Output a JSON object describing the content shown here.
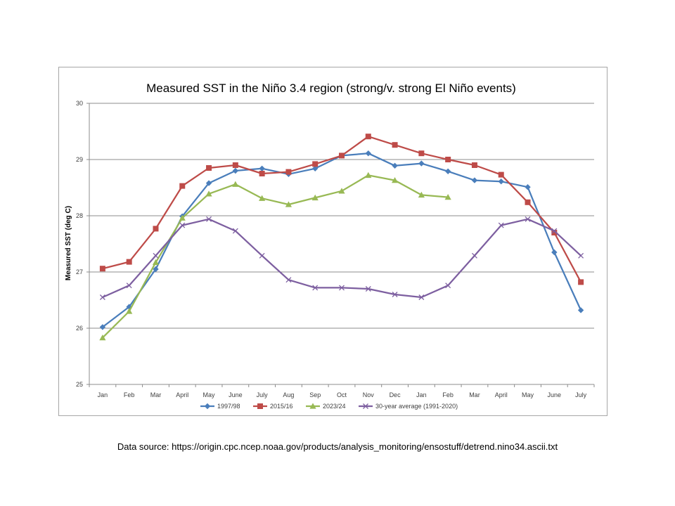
{
  "chart_data": {
    "type": "line",
    "title": "Measured SST in the Niño 3.4 region (strong/v. strong El Niño events)",
    "xlabel": "",
    "ylabel": "Measured SST (deg C)",
    "ylim": [
      25,
      30
    ],
    "yticks": [
      "25",
      "26",
      "27",
      "28",
      "29",
      "30"
    ],
    "grid": "horizontal",
    "legend_position": "bottom",
    "categories": [
      "Jan",
      "Feb",
      "Mar",
      "April",
      "May",
      "June",
      "July",
      "Aug",
      "Sep",
      "Oct",
      "Nov",
      "Dec",
      "Jan",
      "Feb",
      "Mar",
      "April",
      "May",
      "June",
      "July"
    ],
    "series": [
      {
        "name": "1997/98",
        "color": "#4a7ebb",
        "marker": "diamond",
        "values": [
          26.02,
          26.38,
          27.05,
          27.99,
          28.58,
          28.8,
          28.84,
          28.74,
          28.84,
          29.07,
          29.11,
          28.89,
          28.93,
          28.79,
          28.63,
          28.61,
          28.51,
          27.35,
          26.32
        ]
      },
      {
        "name": "2015/16",
        "color": "#be4b48",
        "marker": "square",
        "values": [
          27.06,
          27.18,
          27.77,
          28.53,
          28.85,
          28.9,
          28.75,
          28.78,
          28.92,
          29.07,
          29.41,
          29.26,
          29.11,
          29.0,
          28.9,
          28.73,
          28.24,
          27.7,
          26.82
        ]
      },
      {
        "name": "2023/24",
        "color": "#98b954",
        "marker": "triangle",
        "values": [
          25.83,
          26.3,
          27.17,
          27.96,
          28.39,
          28.56,
          28.31,
          28.2,
          28.32,
          28.44,
          28.72,
          28.63,
          28.37,
          28.33,
          null,
          null,
          null,
          null,
          null
        ]
      },
      {
        "name": "30-year average (1991-2020)",
        "color": "#7d5fa0",
        "marker": "x",
        "values": [
          26.55,
          26.76,
          27.29,
          27.83,
          27.94,
          27.73,
          27.29,
          26.86,
          26.72,
          26.72,
          26.7,
          26.6,
          26.55,
          26.76,
          27.29,
          27.83,
          27.94,
          27.73,
          27.29
        ]
      }
    ]
  },
  "footer": {
    "source_text": "Data source: https://origin.cpc.ncep.noaa.gov/products/analysis_monitoring/ensostuff/detrend.nino34.ascii.txt"
  }
}
